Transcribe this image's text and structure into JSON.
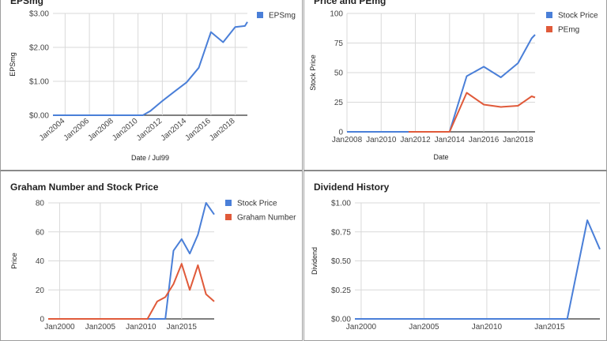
{
  "colors": {
    "blue": "#4a7fd8",
    "red": "#e05a3a",
    "grid": "#d9d9d9",
    "axis": "#333333"
  },
  "chart_data": [
    {
      "type": "line",
      "title": "EPSmg",
      "xlabel": "Date / Jul99",
      "ylabel": "EPSmg",
      "xlim": [
        2003.0,
        2019.0
      ],
      "ylim": [
        0,
        3
      ],
      "yticks": [
        0,
        1,
        2,
        3
      ],
      "ytick_labels": [
        "$0.00",
        "$1.00",
        "$2.00",
        "$3.00"
      ],
      "xticks": [
        2004,
        2006,
        2008,
        2010,
        2012,
        2014,
        2016,
        2018
      ],
      "xtick_labels": [
        "Jan2004",
        "Jan2006",
        "Jan2008",
        "Jan2010",
        "Jan2012",
        "Jan2014",
        "Jan2016",
        "Jan2018"
      ],
      "xtick_rotate": true,
      "grid": true,
      "legend_position": "right",
      "series": [
        {
          "name": "EPSmg",
          "color": "#4a7fd8",
          "x": [
            2003.0,
            2010.4,
            2011.0,
            2012.0,
            2013.0,
            2014.0,
            2015.0,
            2016.0,
            2017.0,
            2018.0,
            2018.8,
            2019.0
          ],
          "y": [
            0,
            0,
            0.12,
            0.42,
            0.7,
            0.97,
            1.4,
            2.45,
            2.15,
            2.6,
            2.63,
            2.75
          ]
        }
      ]
    },
    {
      "type": "line",
      "title": "Price and PEmg",
      "xlabel": "Date",
      "ylabel": "Stock Price",
      "xlim": [
        2008.0,
        2019.0
      ],
      "ylim": [
        0,
        100
      ],
      "yticks": [
        0,
        25,
        50,
        75,
        100
      ],
      "ytick_labels": [
        "0",
        "25",
        "50",
        "75",
        "100"
      ],
      "xticks": [
        2008,
        2010,
        2012,
        2014,
        2016,
        2018
      ],
      "xtick_labels": [
        "Jan2008",
        "Jan2010",
        "Jan2012",
        "Jan2014",
        "Jan2016",
        "Jan2018"
      ],
      "xtick_rotate": false,
      "grid": true,
      "legend_position": "right",
      "series": [
        {
          "name": "Stock Price",
          "color": "#4a7fd8",
          "x": [
            2008.0,
            2014.0,
            2015.0,
            2016.0,
            2017.0,
            2018.0,
            2018.8,
            2019.0
          ],
          "y": [
            0,
            0,
            47,
            55,
            46,
            58,
            79,
            82
          ]
        },
        {
          "name": "PEmg",
          "color": "#e05a3a",
          "x": [
            2011.6,
            2014.0,
            2015.0,
            2016.0,
            2017.0,
            2018.0,
            2018.8,
            2019.0
          ],
          "y": [
            0,
            0,
            33,
            23,
            21,
            22,
            30,
            29
          ]
        }
      ]
    },
    {
      "type": "line",
      "title": "Graham Number and Stock Price",
      "xlabel": "",
      "ylabel": "Price",
      "xlim": [
        1998.6,
        2019.0
      ],
      "ylim": [
        0,
        80
      ],
      "yticks": [
        0,
        20,
        40,
        60,
        80
      ],
      "ytick_labels": [
        "0",
        "20",
        "40",
        "60",
        "80"
      ],
      "xticks": [
        2000,
        2005,
        2010,
        2015
      ],
      "xtick_labels": [
        "Jan2000",
        "Jan2005",
        "Jan2010",
        "Jan2015"
      ],
      "xtick_rotate": false,
      "grid": true,
      "legend_position": "right",
      "series": [
        {
          "name": "Stock Price",
          "color": "#4a7fd8",
          "x": [
            1998.6,
            2013.0,
            2014.0,
            2015.0,
            2016.0,
            2017.0,
            2018.0,
            2019.0
          ],
          "y": [
            0,
            0,
            47,
            55,
            45,
            58,
            80,
            72
          ]
        },
        {
          "name": "Graham Number",
          "color": "#e05a3a",
          "x": [
            1998.6,
            2010.8,
            2012.0,
            2013.0,
            2014.0,
            2015.0,
            2016.0,
            2017.0,
            2018.0,
            2019.0
          ],
          "y": [
            0,
            0,
            12,
            15,
            24,
            38,
            20,
            37,
            17,
            12
          ]
        }
      ]
    },
    {
      "type": "line",
      "title": "Dividend History",
      "xlabel": "",
      "ylabel": "Dividend",
      "xlim": [
        1999.5,
        2019.0
      ],
      "ylim": [
        0,
        1
      ],
      "yticks": [
        0,
        0.25,
        0.5,
        0.75,
        1.0
      ],
      "ytick_labels": [
        "$0.00",
        "$0.25",
        "$0.50",
        "$0.75",
        "$1.00"
      ],
      "xticks": [
        2000,
        2005,
        2010,
        2015
      ],
      "xtick_labels": [
        "Jan2000",
        "Jan2005",
        "Jan2010",
        "Jan2015"
      ],
      "xtick_rotate": false,
      "grid": true,
      "legend_position": "none",
      "series": [
        {
          "name": "",
          "color": "#4a7fd8",
          "x": [
            1999.5,
            2016.4,
            2018.0,
            2019.0
          ],
          "y": [
            0,
            0,
            0.85,
            0.6
          ]
        }
      ]
    }
  ]
}
